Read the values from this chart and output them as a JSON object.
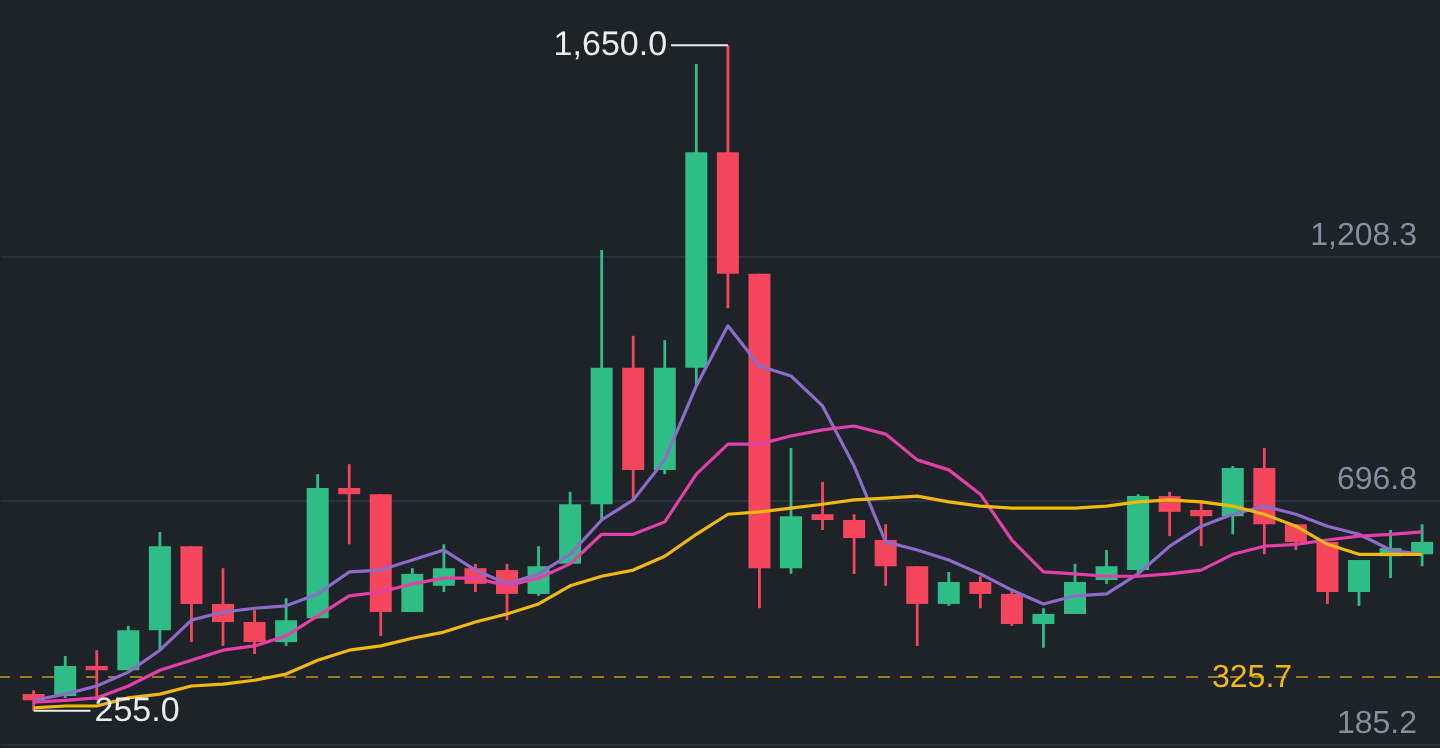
{
  "chart_data": {
    "type": "candlestick",
    "categories": [
      null,
      null,
      null,
      null,
      null,
      null,
      null,
      null,
      null,
      null,
      null,
      null,
      null,
      null,
      null,
      null,
      null,
      null,
      null,
      null,
      null,
      null,
      null,
      null,
      null,
      null,
      null,
      null,
      null,
      null,
      null,
      null,
      null,
      null,
      null,
      null,
      null,
      null,
      null,
      null,
      null,
      null,
      null,
      null,
      null
    ],
    "ohlc": [
      [
        290,
        298,
        255,
        277
      ],
      [
        286,
        370,
        282,
        349
      ],
      [
        349,
        382,
        277,
        340
      ],
      [
        340,
        433,
        340,
        424
      ],
      [
        424,
        630,
        382,
        600
      ],
      [
        600,
        600,
        399,
        479
      ],
      [
        479,
        554,
        391,
        441
      ],
      [
        441,
        466,
        374,
        399
      ],
      [
        399,
        491,
        391,
        445
      ],
      [
        449,
        751,
        449,
        722
      ],
      [
        722,
        772,
        604,
        709
      ],
      [
        709,
        709,
        412,
        462
      ],
      [
        462,
        554,
        462,
        542
      ],
      [
        517,
        604,
        504,
        554
      ],
      [
        554,
        563,
        504,
        521
      ],
      [
        550,
        563,
        445,
        500
      ],
      [
        500,
        600,
        496,
        558
      ],
      [
        563,
        714,
        563,
        688
      ],
      [
        688,
        1221,
        655,
        974
      ],
      [
        974,
        1041,
        697,
        760
      ],
      [
        760,
        1032,
        751,
        974
      ],
      [
        974,
        1611,
        936,
        1426
      ],
      [
        1426,
        1650,
        1099,
        1171
      ],
      [
        1171,
        1171,
        470,
        554
      ],
      [
        554,
        806,
        542,
        663
      ],
      [
        667,
        735,
        634,
        655
      ],
      [
        655,
        667,
        542,
        617
      ],
      [
        613,
        646,
        517,
        558
      ],
      [
        558,
        558,
        391,
        479
      ],
      [
        479,
        546,
        475,
        525
      ],
      [
        525,
        537,
        470,
        500
      ],
      [
        500,
        508,
        433,
        437
      ],
      [
        437,
        470,
        387,
        458
      ],
      [
        458,
        563,
        458,
        525
      ],
      [
        529,
        592,
        521,
        558
      ],
      [
        550,
        709,
        542,
        705
      ],
      [
        705,
        714,
        621,
        672
      ],
      [
        676,
        697,
        600,
        663
      ],
      [
        663,
        768,
        625,
        764
      ],
      [
        764,
        806,
        583,
        646
      ],
      [
        646,
        646,
        592,
        609
      ],
      [
        609,
        609,
        479,
        504
      ],
      [
        504,
        571,
        475,
        571
      ],
      [
        579,
        634,
        533,
        596
      ],
      [
        583,
        646,
        558,
        609
      ]
    ],
    "colors": [
      "#f6465d",
      "#2ebd85",
      "#f6465d",
      "#2ebd85",
      "#2ebd85",
      "#f6465d",
      "#f6465d",
      "#f6465d",
      "#2ebd85",
      "#2ebd85",
      "#f6465d",
      "#f6465d",
      "#2ebd85",
      "#2ebd85",
      "#f6465d",
      "#f6465d",
      "#2ebd85",
      "#2ebd85",
      "#2ebd85",
      "#f6465d",
      "#2ebd85",
      "#2ebd85",
      "#f6465d",
      "#f6465d",
      "#2ebd85",
      "#f6465d",
      "#f6465d",
      "#f6465d",
      "#f6465d",
      "#2ebd85",
      "#f6465d",
      "#f6465d",
      "#2ebd85",
      "#2ebd85",
      "#2ebd85",
      "#2ebd85",
      "#f6465d",
      "#f6465d",
      "#2ebd85",
      "#f6465d",
      "#f6465d",
      "#f6465d",
      "#2ebd85",
      "#2ebd85",
      "#2ebd85"
    ],
    "series": [
      {
        "type": "line",
        "color": "#8c6cc8",
        "values": [
          277,
          290,
          307,
          336,
          382,
          445,
          462,
          470,
          475,
          500,
          546,
          550,
          571,
          592,
          550,
          521,
          542,
          583,
          655,
          697,
          781,
          936,
          1062,
          978,
          957,
          894,
          768,
          609,
          592,
          571,
          542,
          508,
          479,
          496,
          500,
          542,
          600,
          642,
          667,
          684,
          667,
          642,
          625,
          592,
          583
        ]
      },
      {
        "type": "line",
        "color": "#e040a8",
        "values": [
          273,
          277,
          282,
          307,
          340,
          361,
          382,
          391,
          412,
          454,
          496,
          504,
          521,
          533,
          533,
          517,
          533,
          563,
          625,
          625,
          651,
          751,
          814,
          814,
          831,
          844,
          852,
          835,
          781,
          760,
          709,
          613,
          546,
          542,
          537,
          537,
          542,
          550,
          583,
          600,
          604,
          613,
          621,
          625,
          630
        ]
      },
      {
        "type": "line",
        "color": "#f0b90b",
        "values": [
          261,
          265,
          265,
          282,
          290,
          307,
          311,
          319,
          332,
          361,
          382,
          391,
          407,
          420,
          441,
          458,
          479,
          517,
          537,
          550,
          579,
          625,
          667,
          672,
          680,
          688,
          697,
          701,
          705,
          693,
          684,
          680,
          680,
          680,
          684,
          693,
          697,
          693,
          684,
          667,
          642,
          604,
          583,
          583,
          583
        ]
      }
    ],
    "ylim": [
      177,
      1745
    ],
    "yticks": [
      {
        "value": 185.2,
        "label": "185.2"
      },
      {
        "value": 696.8,
        "label": "696.8"
      },
      {
        "value": 1208.3,
        "label": "1,208.3"
      }
    ],
    "tick_labels": "y",
    "grid": "y",
    "marker": "none",
    "line_style": "solid",
    "annotations": [
      "1,650.0",
      "255.0"
    ],
    "ref_lines": [
      {
        "axis": "y",
        "value": 325.7,
        "label": "325.7",
        "color": "#f0b90b",
        "line_style": "dashed"
      }
    ]
  }
}
